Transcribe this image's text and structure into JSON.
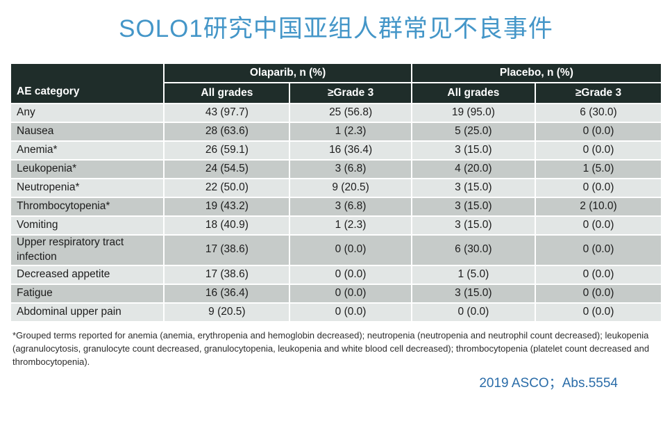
{
  "title": "SOLO1研究中国亚组人群常见不良事件",
  "chart_data": {
    "type": "table",
    "title": "SOLO1研究中国亚组人群常见不良事件",
    "row_header": "AE category",
    "column_groups": [
      "Olaparib, n (%)",
      "Placebo, n (%)"
    ],
    "sub_columns": [
      "All grades",
      "≥Grade 3",
      "All grades",
      "≥Grade 3"
    ],
    "rows": [
      {
        "category": "Any",
        "values": [
          "43 (97.7)",
          "25 (56.8)",
          "19 (95.0)",
          "6 (30.0)"
        ]
      },
      {
        "category": "Nausea",
        "values": [
          "28 (63.6)",
          "1 (2.3)",
          "5 (25.0)",
          "0 (0.0)"
        ]
      },
      {
        "category": "Anemia*",
        "values": [
          "26 (59.1)",
          "16 (36.4)",
          "3 (15.0)",
          "0 (0.0)"
        ]
      },
      {
        "category": "Leukopenia*",
        "values": [
          "24 (54.5)",
          "3 (6.8)",
          "4 (20.0)",
          "1 (5.0)"
        ]
      },
      {
        "category": "Neutropenia*",
        "values": [
          "22 (50.0)",
          "9 (20.5)",
          "3 (15.0)",
          "0 (0.0)"
        ]
      },
      {
        "category": "Thrombocytopenia*",
        "values": [
          "19 (43.2)",
          "3 (6.8)",
          "3 (15.0)",
          "2 (10.0)"
        ]
      },
      {
        "category": "Vomiting",
        "values": [
          "18 (40.9)",
          "1 (2.3)",
          "3 (15.0)",
          "0 (0.0)"
        ]
      },
      {
        "category": "Upper respiratory tract infection",
        "values": [
          "17 (38.6)",
          "0 (0.0)",
          "6 (30.0)",
          "0 (0.0)"
        ]
      },
      {
        "category": "Decreased appetite",
        "values": [
          "17 (38.6)",
          "0 (0.0)",
          "1 (5.0)",
          "0 (0.0)"
        ]
      },
      {
        "category": "Fatigue",
        "values": [
          "16 (36.4)",
          "0 (0.0)",
          "3 (15.0)",
          "0 (0.0)"
        ]
      },
      {
        "category": "Abdominal upper pain",
        "values": [
          "9 (20.5)",
          "0 (0.0)",
          "0 (0.0)",
          "0 (0.0)"
        ]
      }
    ]
  },
  "footnote": "*Grouped terms reported for anemia (anemia, erythropenia and hemoglobin decreased); neutropenia (neutropenia and neutrophil count decreased); leukopenia (agranulocytosis, granulocyte count decreased, granulocytopenia, leukopenia and white blood cell decreased); thrombocytopenia (platelet count decreased and thrombocytopenia).",
  "citation": "2019 ASCO；Abs.5554",
  "colors": {
    "title_blue": "#4496c8",
    "header_bg": "#1f2d2a",
    "row_light": "#e2e6e5",
    "row_dark": "#c6cbc9",
    "citation_blue": "#2a6ca8",
    "header_text": "#ffffff",
    "body_text": "#1c1c1c"
  }
}
